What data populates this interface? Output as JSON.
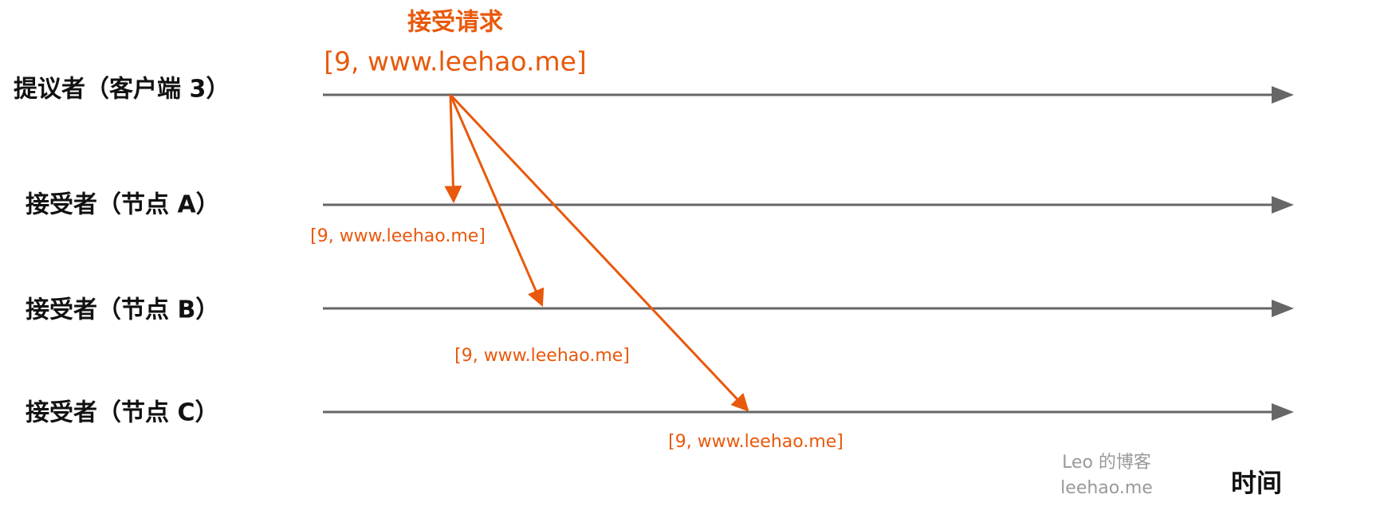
{
  "proposer": "提议者（客户端 3）",
  "acceptors": [
    "接受者（节点 A）",
    "接受者（节点 B）",
    "接受者（节点 C）"
  ],
  "request": {
    "title": "接受请求",
    "value": "[9, www.leehao.me]"
  },
  "messages": [
    "[9, www.leehao.me]",
    "[9, www.leehao.me]",
    "[9, www.leehao.me]"
  ],
  "watermark": [
    "Leo 的博客",
    "leehao.me"
  ],
  "time_label": "时间"
}
